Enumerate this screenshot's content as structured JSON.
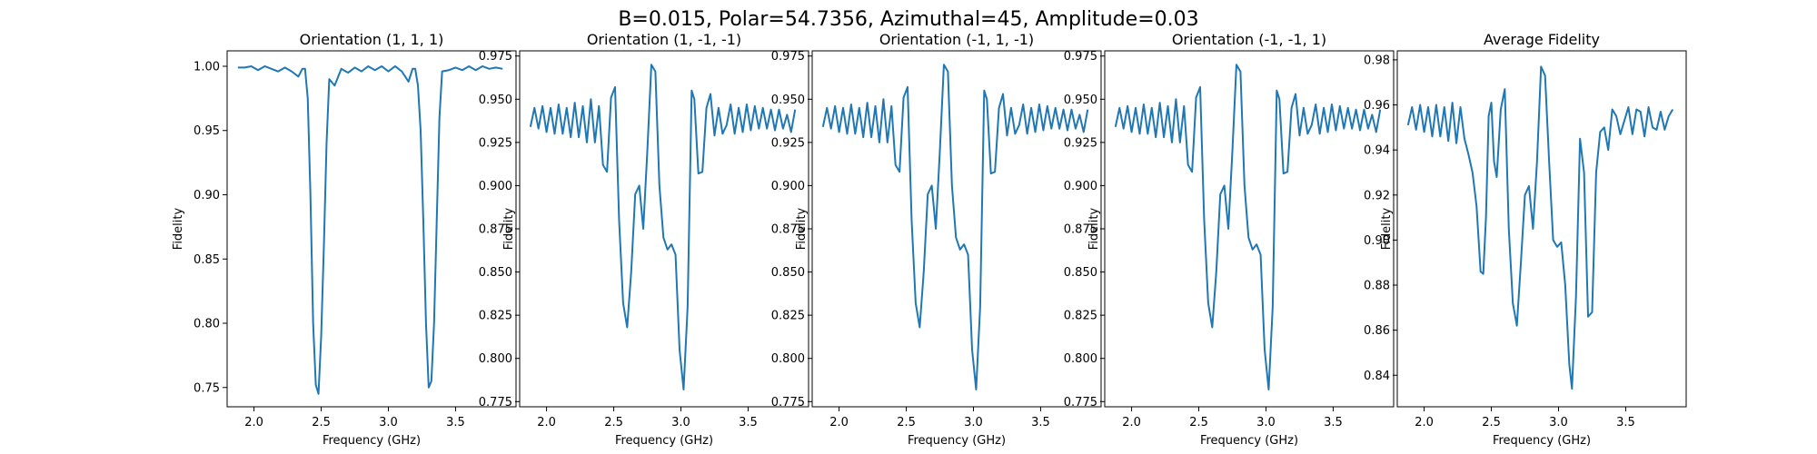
{
  "figure_title": "B=0.015, Polar=54.7356, Azimuthal=45, Amplitude=0.03",
  "line_color": "#1f77b4",
  "chart_data": [
    {
      "type": "line",
      "title": "Orientation (1, 1, 1)",
      "xlabel": "Frequency (GHz)",
      "ylabel": "Fidelity",
      "xlim": [
        1.8,
        3.95
      ],
      "ylim": [
        0.735,
        1.012
      ],
      "xticks": [
        2.0,
        2.5,
        3.0,
        3.5
      ],
      "xtick_labels": [
        "2.0",
        "2.5",
        "3.0",
        "3.5"
      ],
      "yticks": [
        0.75,
        0.8,
        0.85,
        0.9,
        0.95,
        1.0
      ],
      "ytick_labels": [
        "0.75",
        "0.80",
        "0.85",
        "0.90",
        "0.95",
        "1.00"
      ],
      "x": [
        1.88,
        1.93,
        1.98,
        2.03,
        2.08,
        2.13,
        2.18,
        2.23,
        2.28,
        2.33,
        2.36,
        2.38,
        2.4,
        2.42,
        2.44,
        2.46,
        2.48,
        2.5,
        2.52,
        2.54,
        2.56,
        2.6,
        2.65,
        2.7,
        2.75,
        2.8,
        2.85,
        2.9,
        2.95,
        3.0,
        3.05,
        3.1,
        3.15,
        3.18,
        3.2,
        3.22,
        3.24,
        3.26,
        3.28,
        3.3,
        3.32,
        3.34,
        3.36,
        3.38,
        3.4,
        3.45,
        3.5,
        3.55,
        3.6,
        3.65,
        3.7,
        3.75,
        3.8,
        3.85
      ],
      "y": [
        0.999,
        0.999,
        1.0,
        0.997,
        1.0,
        0.998,
        0.996,
        0.999,
        0.996,
        0.992,
        0.998,
        0.998,
        0.975,
        0.9,
        0.8,
        0.752,
        0.745,
        0.79,
        0.86,
        0.94,
        0.99,
        0.985,
        0.998,
        0.995,
        0.999,
        0.996,
        1.0,
        0.997,
        1.0,
        0.996,
        1.0,
        0.996,
        0.988,
        0.998,
        0.998,
        0.985,
        0.95,
        0.88,
        0.8,
        0.75,
        0.755,
        0.8,
        0.88,
        0.96,
        0.996,
        0.997,
        0.999,
        0.997,
        1.0,
        0.997,
        1.0,
        0.998,
        0.999,
        0.998
      ]
    },
    {
      "type": "line",
      "title": "Orientation (1, -1, -1)",
      "xlabel": "Frequency (GHz)",
      "ylabel": "Fidelity",
      "xlim": [
        1.8,
        3.95
      ],
      "ylim": [
        0.772,
        0.978
      ],
      "xticks": [
        2.0,
        2.5,
        3.0,
        3.5
      ],
      "xtick_labels": [
        "2.0",
        "2.5",
        "3.0",
        "3.5"
      ],
      "yticks": [
        0.775,
        0.8,
        0.825,
        0.85,
        0.875,
        0.9,
        0.925,
        0.95,
        0.975
      ],
      "ytick_labels": [
        "0.775",
        "0.800",
        "0.825",
        "0.850",
        "0.875",
        "0.900",
        "0.925",
        "0.950",
        "0.975"
      ],
      "x": [
        1.88,
        1.91,
        1.94,
        1.97,
        2.0,
        2.03,
        2.06,
        2.09,
        2.12,
        2.15,
        2.18,
        2.21,
        2.24,
        2.27,
        2.3,
        2.33,
        2.36,
        2.39,
        2.42,
        2.45,
        2.48,
        2.51,
        2.54,
        2.57,
        2.6,
        2.63,
        2.66,
        2.69,
        2.72,
        2.75,
        2.78,
        2.81,
        2.84,
        2.87,
        2.9,
        2.93,
        2.96,
        2.99,
        3.02,
        3.05,
        3.08,
        3.1,
        3.13,
        3.16,
        3.19,
        3.22,
        3.25,
        3.28,
        3.31,
        3.34,
        3.37,
        3.4,
        3.43,
        3.46,
        3.49,
        3.52,
        3.55,
        3.58,
        3.61,
        3.64,
        3.67,
        3.7,
        3.73,
        3.76,
        3.79,
        3.82,
        3.85
      ],
      "y": [
        0.934,
        0.945,
        0.933,
        0.946,
        0.931,
        0.945,
        0.93,
        0.947,
        0.93,
        0.945,
        0.928,
        0.948,
        0.928,
        0.946,
        0.925,
        0.95,
        0.925,
        0.946,
        0.912,
        0.908,
        0.951,
        0.957,
        0.88,
        0.832,
        0.818,
        0.85,
        0.895,
        0.9,
        0.875,
        0.92,
        0.97,
        0.966,
        0.9,
        0.87,
        0.863,
        0.866,
        0.86,
        0.805,
        0.782,
        0.83,
        0.955,
        0.95,
        0.907,
        0.908,
        0.945,
        0.953,
        0.929,
        0.945,
        0.93,
        0.935,
        0.947,
        0.93,
        0.945,
        0.931,
        0.947,
        0.932,
        0.946,
        0.933,
        0.945,
        0.933,
        0.944,
        0.932,
        0.944,
        0.933,
        0.941,
        0.931,
        0.944
      ]
    },
    {
      "type": "line",
      "title": "Orientation (-1, 1, -1)",
      "xlabel": "Frequency (GHz)",
      "ylabel": "Fidelity",
      "xlim": [
        1.8,
        3.95
      ],
      "ylim": [
        0.772,
        0.978
      ],
      "xticks": [
        2.0,
        2.5,
        3.0,
        3.5
      ],
      "xtick_labels": [
        "2.0",
        "2.5",
        "3.0",
        "3.5"
      ],
      "yticks": [
        0.775,
        0.8,
        0.825,
        0.85,
        0.875,
        0.9,
        0.925,
        0.95,
        0.975
      ],
      "ytick_labels": [
        "0.775",
        "0.800",
        "0.825",
        "0.850",
        "0.875",
        "0.900",
        "0.925",
        "0.950",
        "0.975"
      ],
      "x": [
        1.88,
        1.91,
        1.94,
        1.97,
        2.0,
        2.03,
        2.06,
        2.09,
        2.12,
        2.15,
        2.18,
        2.21,
        2.24,
        2.27,
        2.3,
        2.33,
        2.36,
        2.39,
        2.42,
        2.45,
        2.48,
        2.51,
        2.54,
        2.57,
        2.6,
        2.63,
        2.66,
        2.69,
        2.72,
        2.75,
        2.78,
        2.81,
        2.84,
        2.87,
        2.9,
        2.93,
        2.96,
        2.99,
        3.02,
        3.05,
        3.08,
        3.1,
        3.13,
        3.16,
        3.19,
        3.22,
        3.25,
        3.28,
        3.31,
        3.34,
        3.37,
        3.4,
        3.43,
        3.46,
        3.49,
        3.52,
        3.55,
        3.58,
        3.61,
        3.64,
        3.67,
        3.7,
        3.73,
        3.76,
        3.79,
        3.82,
        3.85
      ],
      "y": [
        0.934,
        0.945,
        0.933,
        0.946,
        0.931,
        0.945,
        0.93,
        0.947,
        0.93,
        0.945,
        0.928,
        0.948,
        0.928,
        0.946,
        0.925,
        0.95,
        0.925,
        0.946,
        0.912,
        0.908,
        0.951,
        0.957,
        0.88,
        0.832,
        0.818,
        0.85,
        0.895,
        0.9,
        0.875,
        0.92,
        0.97,
        0.966,
        0.9,
        0.87,
        0.863,
        0.866,
        0.86,
        0.805,
        0.782,
        0.83,
        0.955,
        0.95,
        0.907,
        0.908,
        0.945,
        0.953,
        0.929,
        0.945,
        0.93,
        0.935,
        0.947,
        0.93,
        0.945,
        0.931,
        0.947,
        0.932,
        0.946,
        0.933,
        0.945,
        0.933,
        0.944,
        0.932,
        0.944,
        0.933,
        0.941,
        0.931,
        0.944
      ]
    },
    {
      "type": "line",
      "title": "Orientation (-1, -1, 1)",
      "xlabel": "Frequency (GHz)",
      "ylabel": "Fidelity",
      "xlim": [
        1.8,
        3.95
      ],
      "ylim": [
        0.772,
        0.978
      ],
      "xticks": [
        2.0,
        2.5,
        3.0,
        3.5
      ],
      "xtick_labels": [
        "2.0",
        "2.5",
        "3.0",
        "3.5"
      ],
      "yticks": [
        0.775,
        0.8,
        0.825,
        0.85,
        0.875,
        0.9,
        0.925,
        0.95,
        0.975
      ],
      "ytick_labels": [
        "0.775",
        "0.800",
        "0.825",
        "0.850",
        "0.875",
        "0.900",
        "0.925",
        "0.950",
        "0.975"
      ],
      "x": [
        1.88,
        1.91,
        1.94,
        1.97,
        2.0,
        2.03,
        2.06,
        2.09,
        2.12,
        2.15,
        2.18,
        2.21,
        2.24,
        2.27,
        2.3,
        2.33,
        2.36,
        2.39,
        2.42,
        2.45,
        2.48,
        2.51,
        2.54,
        2.57,
        2.6,
        2.63,
        2.66,
        2.69,
        2.72,
        2.75,
        2.78,
        2.81,
        2.84,
        2.87,
        2.9,
        2.93,
        2.96,
        2.99,
        3.02,
        3.05,
        3.08,
        3.1,
        3.13,
        3.16,
        3.19,
        3.22,
        3.25,
        3.28,
        3.31,
        3.34,
        3.37,
        3.4,
        3.43,
        3.46,
        3.49,
        3.52,
        3.55,
        3.58,
        3.61,
        3.64,
        3.67,
        3.7,
        3.73,
        3.76,
        3.79,
        3.82,
        3.85
      ],
      "y": [
        0.934,
        0.945,
        0.933,
        0.946,
        0.931,
        0.945,
        0.93,
        0.947,
        0.93,
        0.945,
        0.928,
        0.948,
        0.928,
        0.946,
        0.925,
        0.95,
        0.925,
        0.946,
        0.912,
        0.908,
        0.951,
        0.957,
        0.88,
        0.832,
        0.818,
        0.85,
        0.895,
        0.9,
        0.875,
        0.92,
        0.97,
        0.966,
        0.9,
        0.87,
        0.863,
        0.866,
        0.86,
        0.805,
        0.782,
        0.83,
        0.955,
        0.95,
        0.907,
        0.908,
        0.945,
        0.953,
        0.929,
        0.945,
        0.93,
        0.935,
        0.947,
        0.93,
        0.945,
        0.931,
        0.947,
        0.932,
        0.946,
        0.933,
        0.945,
        0.933,
        0.944,
        0.932,
        0.944,
        0.933,
        0.941,
        0.931,
        0.944
      ]
    },
    {
      "type": "line",
      "title": "Average Fidelity",
      "xlabel": "Frequency (GHz)",
      "ylabel": "Fidelity",
      "xlim": [
        1.8,
        3.95
      ],
      "ylim": [
        0.826,
        0.984
      ],
      "xticks": [
        2.0,
        2.5,
        3.0,
        3.5
      ],
      "xtick_labels": [
        "2.0",
        "2.5",
        "3.0",
        "3.5"
      ],
      "yticks": [
        0.84,
        0.86,
        0.88,
        0.9,
        0.92,
        0.94,
        0.96,
        0.98
      ],
      "ytick_labels": [
        "0.84",
        "0.86",
        "0.88",
        "0.90",
        "0.92",
        "0.94",
        "0.96",
        "0.98"
      ],
      "x": [
        1.88,
        1.91,
        1.94,
        1.97,
        2.0,
        2.03,
        2.06,
        2.09,
        2.12,
        2.15,
        2.18,
        2.21,
        2.24,
        2.27,
        2.3,
        2.33,
        2.36,
        2.39,
        2.42,
        2.44,
        2.46,
        2.48,
        2.5,
        2.52,
        2.54,
        2.57,
        2.6,
        2.63,
        2.66,
        2.69,
        2.72,
        2.75,
        2.78,
        2.81,
        2.84,
        2.87,
        2.9,
        2.93,
        2.96,
        2.99,
        3.02,
        3.05,
        3.08,
        3.1,
        3.13,
        3.16,
        3.19,
        3.22,
        3.25,
        3.28,
        3.31,
        3.34,
        3.37,
        3.4,
        3.43,
        3.46,
        3.49,
        3.52,
        3.55,
        3.58,
        3.61,
        3.64,
        3.67,
        3.7,
        3.73,
        3.76,
        3.79,
        3.82,
        3.85
      ],
      "y": [
        0.951,
        0.959,
        0.949,
        0.96,
        0.948,
        0.959,
        0.946,
        0.96,
        0.946,
        0.959,
        0.944,
        0.961,
        0.943,
        0.959,
        0.945,
        0.938,
        0.93,
        0.915,
        0.886,
        0.885,
        0.91,
        0.955,
        0.961,
        0.935,
        0.928,
        0.958,
        0.967,
        0.905,
        0.872,
        0.862,
        0.89,
        0.92,
        0.924,
        0.905,
        0.935,
        0.977,
        0.973,
        0.935,
        0.9,
        0.897,
        0.899,
        0.88,
        0.845,
        0.834,
        0.875,
        0.945,
        0.93,
        0.866,
        0.868,
        0.93,
        0.948,
        0.95,
        0.94,
        0.958,
        0.955,
        0.947,
        0.953,
        0.959,
        0.947,
        0.958,
        0.957,
        0.946,
        0.959,
        0.95,
        0.949,
        0.957,
        0.949,
        0.955,
        0.958
      ]
    }
  ]
}
